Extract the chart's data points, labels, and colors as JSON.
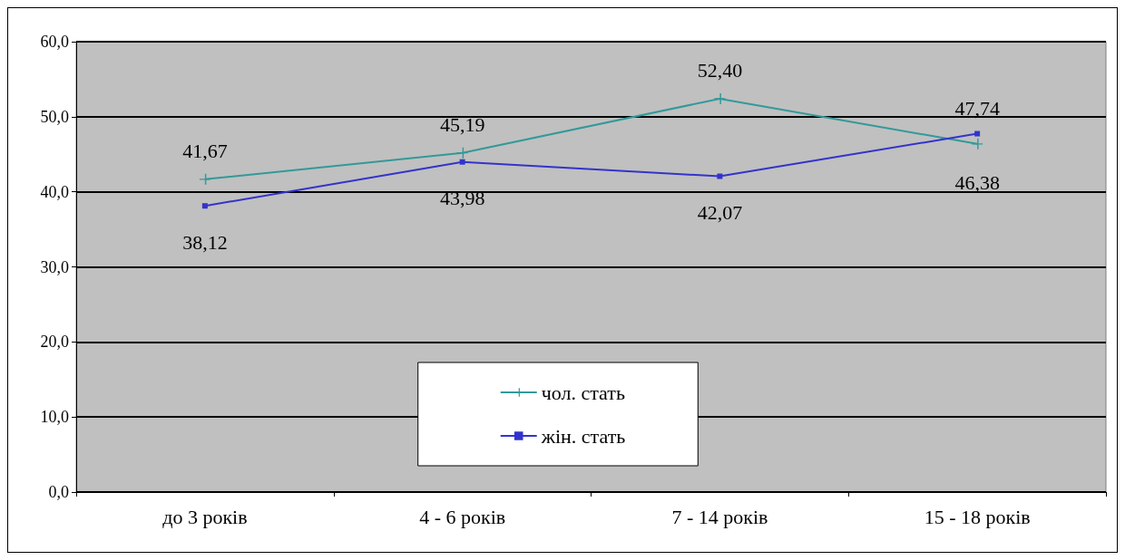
{
  "chart_data": {
    "type": "line",
    "categories": [
      "до 3 років",
      "4 - 6 років",
      "7 - 14 років",
      "15 - 18 років"
    ],
    "series": [
      {
        "name": "чол. стать",
        "color": "#339999",
        "marker": "cross",
        "values": [
          41.67,
          45.19,
          52.4,
          46.38
        ],
        "value_labels": [
          "41,67",
          "45,19",
          "52,40",
          "46,38"
        ]
      },
      {
        "name": "жін. стать",
        "color": "#3333cc",
        "marker": "square",
        "values": [
          38.12,
          43.98,
          42.07,
          47.74
        ],
        "value_labels": [
          "38,12",
          "43,98",
          "42,07",
          "47,74"
        ]
      }
    ],
    "ylim": [
      0,
      60
    ],
    "yticks": [
      {
        "value": 0,
        "label": "0,0"
      },
      {
        "value": 10,
        "label": "10,0"
      },
      {
        "value": 20,
        "label": "20,0"
      },
      {
        "value": 30,
        "label": "30,0"
      },
      {
        "value": 40,
        "label": "40,0"
      },
      {
        "value": 50,
        "label": "50,0"
      },
      {
        "value": 60,
        "label": "60,0"
      }
    ],
    "grid": "y",
    "legend": "bottom"
  }
}
